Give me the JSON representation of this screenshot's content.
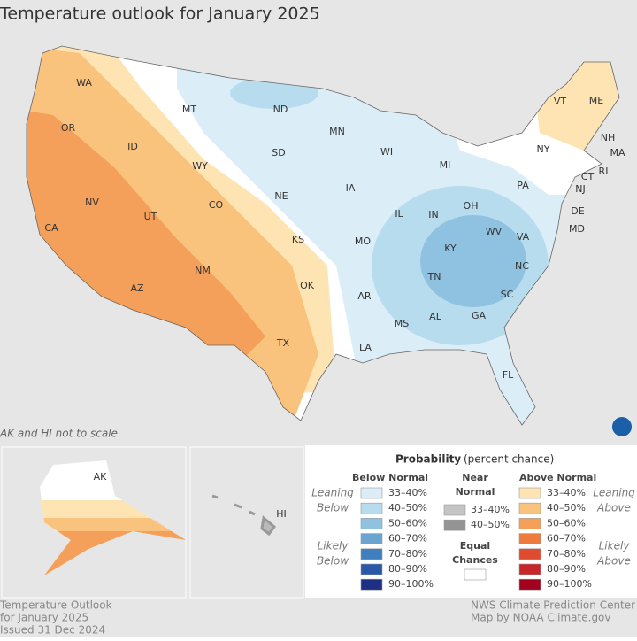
{
  "title": "Temperature outlook for January 2025",
  "note": "AK and HI not to scale",
  "states": [
    "WA",
    "OR",
    "CA",
    "ID",
    "NV",
    "MT",
    "WY",
    "UT",
    "AZ",
    "CO",
    "NM",
    "ND",
    "SD",
    "NE",
    "KS",
    "OK",
    "TX",
    "MN",
    "IA",
    "MO",
    "AR",
    "LA",
    "WI",
    "IL",
    "MS",
    "MI",
    "IN",
    "KY",
    "TN",
    "AL",
    "OH",
    "WV",
    "GA",
    "FL",
    "PA",
    "VA",
    "NC",
    "SC",
    "NY",
    "VT",
    "ME",
    "NH",
    "MA",
    "CT",
    "RI",
    "NJ",
    "DE",
    "MD",
    "AK",
    "HI"
  ],
  "legend": {
    "title": "Probability",
    "subtitle": "(percent chance)",
    "below": {
      "header": "Below Normal",
      "items": [
        {
          "label": "33–40%",
          "color": "#dbeef8"
        },
        {
          "label": "40–50%",
          "color": "#b7dcee"
        },
        {
          "label": "50–60%",
          "color": "#8ec2e0"
        },
        {
          "label": "60–70%",
          "color": "#6aa4d0"
        },
        {
          "label": "70–80%",
          "color": "#3f7fbf"
        },
        {
          "label": "80–90%",
          "color": "#2a57a8"
        },
        {
          "label": "90–100%",
          "color": "#1e2f86"
        }
      ]
    },
    "near": {
      "header": [
        "Near",
        "Normal"
      ],
      "items": [
        {
          "label": "33–40%",
          "color": "#c4c4c4"
        },
        {
          "label": "40–50%",
          "color": "#949494"
        }
      ]
    },
    "equal": {
      "header": [
        "Equal",
        "Chances"
      ],
      "color": "#ffffff"
    },
    "above": {
      "header": "Above Normal",
      "items": [
        {
          "label": "33–40%",
          "color": "#fde4b2"
        },
        {
          "label": "40–50%",
          "color": "#f9c27d"
        },
        {
          "label": "50–60%",
          "color": "#f5a05a"
        },
        {
          "label": "60–70%",
          "color": "#ef7a3e"
        },
        {
          "label": "70–80%",
          "color": "#e04a2e"
        },
        {
          "label": "80–90%",
          "color": "#c7262a"
        },
        {
          "label": "90–100%",
          "color": "#a3001f"
        }
      ]
    },
    "leaning_below": [
      "Leaning",
      "Below"
    ],
    "likely_below": [
      "Likely",
      "Below"
    ],
    "leaning_above": [
      "Leaning",
      "Above"
    ],
    "likely_above": [
      "Likely",
      "Above"
    ]
  },
  "footer_left": [
    "Temperature Outlook",
    "for January 2025",
    "Issued 31 Dec 2024"
  ],
  "footer_right": [
    "NWS Climate Prediction Center",
    "Map by NOAA Climate.gov"
  ]
}
